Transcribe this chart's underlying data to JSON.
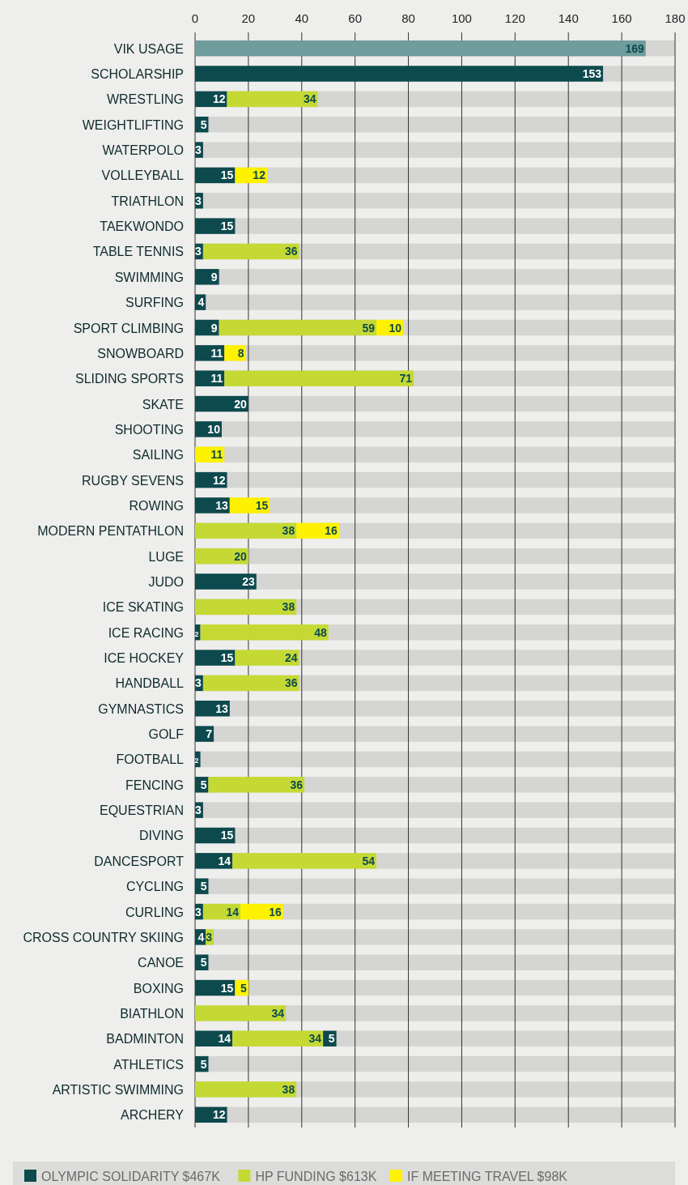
{
  "chart_data": {
    "type": "bar",
    "orientation": "horizontal",
    "stacked": true,
    "data_labels": true,
    "grid": "x",
    "legend": "bottom",
    "xlim": [
      0,
      180
    ],
    "xticks": [
      0,
      20,
      40,
      60,
      80,
      100,
      120,
      140,
      160,
      180
    ],
    "categories": [
      "VIK USAGE",
      "SCHOLARSHIP",
      "WRESTLING",
      "WEIGHTLIFTING",
      "WATERPOLO",
      "VOLLEYBALL",
      "TRIATHLON",
      "TAEKWONDO",
      "TABLE TENNIS",
      "SWIMMING",
      "SURFING",
      "SPORT CLIMBING",
      "SNOWBOARD",
      "SLIDING SPORTS",
      "SKATE",
      "SHOOTING",
      "SAILING",
      "RUGBY SEVENS",
      "ROWING",
      "MODERN PENTATHLON",
      "LUGE",
      "JUDO",
      "ICE SKATING",
      "ICE RACING",
      "ICE HOCKEY",
      "HANDBALL",
      "GYMNASTICS",
      "GOLF",
      "FOOTBALL",
      "FENCING",
      "EQUESTRIAN",
      "DIVING",
      "DANCESPORT",
      "CYCLING",
      "CURLING",
      "CROSS COUNTRY SKIING",
      "CANOE",
      "BOXING",
      "BIATHLON",
      "BADMINTON",
      "ATHLETICS",
      "ARTISTIC SWIMMING",
      "ARCHERY"
    ],
    "series": [
      {
        "name": "OLYMPIC SOLIDARITY $467K",
        "color": "#0d4a4e",
        "colors": [
          "#6f9c9c",
          "#0d4a4e",
          "#0d4a4e",
          "#0d4a4e",
          "#0d4a4e",
          "#0d4a4e",
          "#0d4a4e",
          "#0d4a4e",
          "#0d4a4e",
          "#0d4a4e",
          "#0d4a4e",
          "#0d4a4e",
          "#0d4a4e",
          "#0d4a4e",
          "#0d4a4e",
          "#0d4a4e",
          null,
          "#0d4a4e",
          "#0d4a4e",
          null,
          null,
          "#0d4a4e",
          null,
          "#0d4a4e",
          "#0d4a4e",
          "#0d4a4e",
          "#0d4a4e",
          "#0d4a4e",
          "#0d4a4e",
          "#0d4a4e",
          "#0d4a4e",
          "#0d4a4e",
          "#0d4a4e",
          "#0d4a4e",
          "#0d4a4e",
          "#0d4a4e",
          "#0d4a4e",
          "#0d4a4e",
          null,
          "#0d4a4e",
          "#0d4a4e",
          null,
          "#0d4a4e"
        ],
        "values": [
          169,
          153,
          12,
          5,
          3,
          15,
          3,
          15,
          3,
          9,
          4,
          9,
          11,
          11,
          20,
          10,
          null,
          12,
          13,
          null,
          null,
          23,
          null,
          2,
          15,
          3,
          13,
          7,
          2,
          5,
          3,
          15,
          14,
          5,
          3,
          4,
          5,
          15,
          null,
          14,
          5,
          null,
          12
        ]
      },
      {
        "name": "HP FUNDING $613K",
        "color": "#c5d935",
        "values": [
          null,
          null,
          34,
          null,
          null,
          null,
          null,
          null,
          36,
          null,
          null,
          59,
          null,
          71,
          null,
          null,
          null,
          null,
          null,
          38,
          20,
          null,
          38,
          48,
          24,
          36,
          null,
          null,
          null,
          36,
          null,
          null,
          54,
          null,
          14,
          3,
          null,
          null,
          34,
          34,
          null,
          38,
          null
        ]
      },
      {
        "name": "IF MEETING TRAVEL $98K",
        "color": "#fff200",
        "values": [
          null,
          null,
          null,
          null,
          null,
          12,
          null,
          null,
          null,
          null,
          null,
          10,
          8,
          null,
          null,
          null,
          11,
          null,
          15,
          16,
          null,
          null,
          null,
          null,
          null,
          null,
          null,
          null,
          null,
          null,
          null,
          null,
          null,
          null,
          16,
          null,
          null,
          5,
          null,
          null,
          null,
          null,
          null
        ]
      },
      {
        "color": "#0d4a4e",
        "values": [
          null,
          null,
          null,
          null,
          null,
          null,
          null,
          null,
          null,
          null,
          null,
          null,
          null,
          null,
          null,
          null,
          null,
          null,
          null,
          null,
          null,
          null,
          null,
          null,
          null,
          null,
          null,
          null,
          null,
          null,
          null,
          null,
          null,
          null,
          null,
          null,
          null,
          null,
          null,
          5,
          null,
          null,
          null
        ]
      }
    ]
  }
}
